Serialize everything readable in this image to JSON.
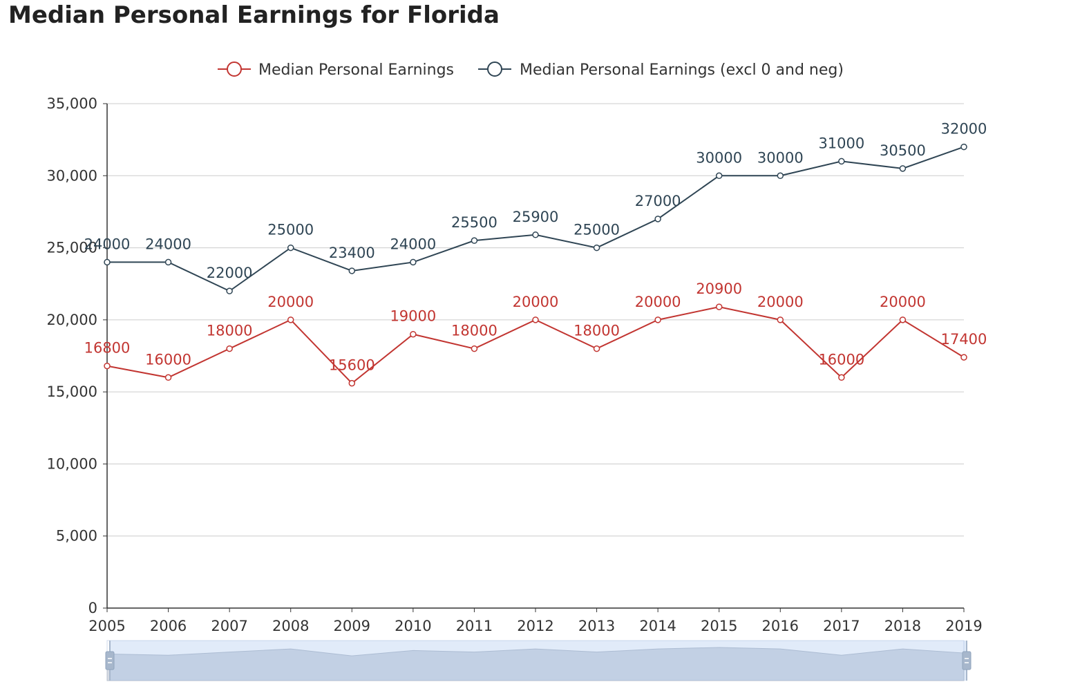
{
  "title": "Median Personal Earnings for Florida",
  "chart_data": {
    "type": "line",
    "title": "Median Personal Earnings for Florida",
    "xlabel": "",
    "ylabel": "",
    "x": [
      2005,
      2006,
      2007,
      2008,
      2009,
      2010,
      2011,
      2012,
      2013,
      2014,
      2015,
      2016,
      2017,
      2018,
      2019
    ],
    "ylim": [
      0,
      35000
    ],
    "yticks": [
      0,
      5000,
      10000,
      15000,
      20000,
      25000,
      30000,
      35000
    ],
    "ytick_labels": [
      "0",
      "5,000",
      "10,000",
      "15,000",
      "20,000",
      "25,000",
      "30,000",
      "35,000"
    ],
    "grid": true,
    "legend_position": "top-center",
    "series": [
      {
        "name": "Median Personal Earnings",
        "color": "#c23531",
        "values": [
          16800,
          16000,
          18000,
          20000,
          15600,
          19000,
          18000,
          20000,
          18000,
          20000,
          20900,
          20000,
          16000,
          20000,
          17400
        ]
      },
      {
        "name": "Median Personal Earnings (excl 0 and neg)",
        "color": "#2f4554",
        "values": [
          24000,
          24000,
          22000,
          25000,
          23400,
          24000,
          25500,
          25900,
          25000,
          27000,
          30000,
          30000,
          31000,
          30500,
          32000
        ]
      }
    ],
    "data_zoom": {
      "start": 0,
      "end": 1
    }
  }
}
